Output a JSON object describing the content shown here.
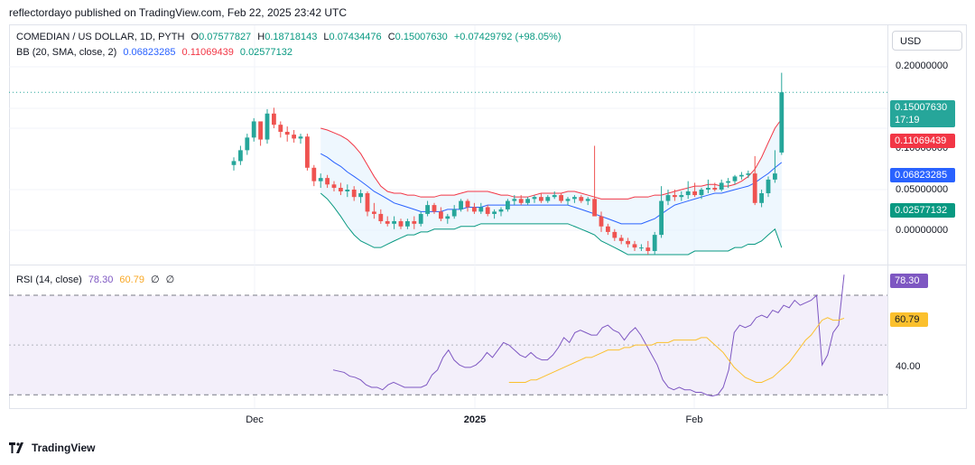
{
  "header": {
    "caption": "reflectordayo published on TradingView.com, Feb 22, 2025 23:42 UTC"
  },
  "legend": {
    "symbol": "COMEDIAN / US DOLLAR, 1D, PYTH",
    "o_label": "O",
    "o_value": "0.07577827",
    "h_label": "H",
    "h_value": "0.18718143",
    "l_label": "L",
    "l_value": "0.07434476",
    "c_label": "C",
    "c_value": "0.15007630",
    "change": "+0.07429792 (+98.05%)",
    "bb_title": "BB (20, SMA, close, 2)",
    "bb_basis": "0.06823285",
    "bb_upper": "0.11069439",
    "bb_lower": "0.02577132",
    "rsi_title": "RSI (14, close)",
    "rsi_value": "78.30",
    "rsi_ma": "60.79",
    "rsi_extra1": "∅",
    "rsi_extra2": "∅"
  },
  "currency_button": "USD",
  "price_axis": [
    "0.20000000",
    "0.10000000",
    "0.05000000",
    "0.00000000"
  ],
  "price_tags": {
    "last": "0.15007630",
    "countdown": "17:19",
    "upper": "0.11069439",
    "basis": "0.06823285",
    "lower": "0.02577132"
  },
  "rsi_axis": {
    "label": "40.00",
    "tag_value": "78.30",
    "tag_ma": "60.79"
  },
  "time_axis": [
    "Dec",
    "2025",
    "Feb"
  ],
  "footer": {
    "brand": "TradingView"
  },
  "colors": {
    "up": "#26a69a",
    "down": "#ef5350",
    "basis": "#2962ff",
    "upper": "#f23645",
    "lower": "#089981",
    "rsi": "#7e57c2",
    "rsi_ma": "#fbc02d",
    "band_fill": "#e3f2fd",
    "rsi_fill": "#f3effa"
  },
  "chart_data": [
    {
      "type": "candlestick",
      "symbol": "COMEDIAN / US DOLLAR",
      "interval": "1D",
      "price_scale": "log",
      "candles_ohlc": [
        [
          0.066,
          0.072,
          0.062,
          0.069
        ],
        [
          0.069,
          0.082,
          0.066,
          0.078
        ],
        [
          0.078,
          0.094,
          0.074,
          0.09
        ],
        [
          0.09,
          0.112,
          0.086,
          0.108
        ],
        [
          0.108,
          0.104,
          0.082,
          0.088
        ],
        [
          0.088,
          0.124,
          0.084,
          0.118
        ],
        [
          0.118,
          0.126,
          0.1,
          0.104
        ],
        [
          0.104,
          0.108,
          0.09,
          0.096
        ],
        [
          0.096,
          0.102,
          0.086,
          0.093
        ],
        [
          0.093,
          0.098,
          0.085,
          0.089
        ],
        [
          0.089,
          0.094,
          0.084,
          0.091
        ],
        [
          0.091,
          0.094,
          0.062,
          0.064
        ],
        [
          0.064,
          0.066,
          0.052,
          0.055
        ],
        [
          0.055,
          0.06,
          0.051,
          0.057
        ],
        [
          0.057,
          0.059,
          0.051,
          0.053
        ],
        [
          0.053,
          0.055,
          0.049,
          0.051
        ],
        [
          0.051,
          0.054,
          0.047,
          0.049
        ],
        [
          0.049,
          0.053,
          0.046,
          0.05
        ],
        [
          0.05,
          0.052,
          0.044,
          0.046
        ],
        [
          0.046,
          0.05,
          0.043,
          0.048
        ],
        [
          0.048,
          0.049,
          0.037,
          0.039
        ],
        [
          0.039,
          0.043,
          0.036,
          0.038
        ],
        [
          0.038,
          0.04,
          0.034,
          0.035
        ],
        [
          0.035,
          0.037,
          0.033,
          0.034
        ],
        [
          0.034,
          0.037,
          0.032,
          0.035
        ],
        [
          0.035,
          0.036,
          0.032,
          0.033
        ],
        [
          0.033,
          0.036,
          0.032,
          0.035
        ],
        [
          0.035,
          0.037,
          0.032,
          0.034
        ],
        [
          0.034,
          0.039,
          0.033,
          0.038
        ],
        [
          0.038,
          0.044,
          0.037,
          0.042
        ],
        [
          0.042,
          0.043,
          0.038,
          0.039
        ],
        [
          0.039,
          0.041,
          0.035,
          0.036
        ],
        [
          0.036,
          0.038,
          0.034,
          0.037
        ],
        [
          0.037,
          0.042,
          0.036,
          0.04
        ],
        [
          0.04,
          0.045,
          0.039,
          0.044
        ],
        [
          0.044,
          0.045,
          0.039,
          0.041
        ],
        [
          0.041,
          0.043,
          0.038,
          0.039
        ],
        [
          0.039,
          0.043,
          0.038,
          0.041
        ],
        [
          0.041,
          0.042,
          0.037,
          0.038
        ],
        [
          0.038,
          0.04,
          0.036,
          0.039
        ],
        [
          0.039,
          0.041,
          0.037,
          0.04
        ],
        [
          0.04,
          0.045,
          0.039,
          0.044
        ],
        [
          0.044,
          0.047,
          0.042,
          0.045
        ],
        [
          0.045,
          0.047,
          0.042,
          0.043
        ],
        [
          0.043,
          0.046,
          0.042,
          0.045
        ],
        [
          0.045,
          0.047,
          0.043,
          0.046
        ],
        [
          0.046,
          0.048,
          0.043,
          0.044
        ],
        [
          0.044,
          0.047,
          0.043,
          0.046
        ],
        [
          0.046,
          0.049,
          0.045,
          0.047
        ],
        [
          0.047,
          0.048,
          0.043,
          0.044
        ],
        [
          0.044,
          0.046,
          0.042,
          0.045
        ],
        [
          0.045,
          0.047,
          0.043,
          0.046
        ],
        [
          0.046,
          0.047,
          0.043,
          0.044
        ],
        [
          0.044,
          0.046,
          0.042,
          0.045
        ],
        [
          0.045,
          0.082,
          0.042,
          0.037
        ],
        [
          0.037,
          0.039,
          0.031,
          0.033
        ],
        [
          0.033,
          0.034,
          0.03,
          0.031
        ],
        [
          0.031,
          0.032,
          0.028,
          0.029
        ],
        [
          0.029,
          0.03,
          0.027,
          0.028
        ],
        [
          0.028,
          0.029,
          0.026,
          0.027
        ],
        [
          0.027,
          0.028,
          0.025,
          0.026
        ],
        [
          0.026,
          0.027,
          0.025,
          0.026
        ],
        [
          0.026,
          0.028,
          0.024,
          0.025
        ],
        [
          0.025,
          0.031,
          0.024,
          0.03
        ],
        [
          0.03,
          0.052,
          0.029,
          0.044
        ],
        [
          0.044,
          0.05,
          0.042,
          0.047
        ],
        [
          0.047,
          0.05,
          0.044,
          0.046
        ],
        [
          0.046,
          0.049,
          0.044,
          0.047
        ],
        [
          0.047,
          0.055,
          0.045,
          0.049
        ],
        [
          0.049,
          0.054,
          0.046,
          0.047
        ],
        [
          0.047,
          0.051,
          0.045,
          0.05
        ],
        [
          0.05,
          0.056,
          0.048,
          0.051
        ],
        [
          0.051,
          0.054,
          0.049,
          0.05
        ],
        [
          0.05,
          0.056,
          0.049,
          0.054
        ],
        [
          0.054,
          0.057,
          0.051,
          0.055
        ],
        [
          0.055,
          0.059,
          0.053,
          0.058
        ],
        [
          0.058,
          0.061,
          0.056,
          0.059
        ],
        [
          0.059,
          0.062,
          0.057,
          0.06
        ],
        [
          0.06,
          0.073,
          0.042,
          0.043
        ],
        [
          0.043,
          0.05,
          0.041,
          0.048
        ],
        [
          0.048,
          0.058,
          0.046,
          0.056
        ],
        [
          0.056,
          0.078,
          0.054,
          0.06
        ],
        [
          0.076,
          0.187,
          0.074,
          0.15
        ]
      ],
      "first_candle_day": "2024-11-25",
      "bollinger_upper": [
        0.1,
        0.098,
        0.095,
        0.092,
        0.088,
        0.082,
        0.075,
        0.066,
        0.058,
        0.052,
        0.049,
        0.048,
        0.048,
        0.047,
        0.047,
        0.046,
        0.046,
        0.046,
        0.047,
        0.047,
        0.047,
        0.048,
        0.049,
        0.049,
        0.049,
        0.049,
        0.048,
        0.047,
        0.047,
        0.046,
        0.046,
        0.046,
        0.047,
        0.048,
        0.048,
        0.048,
        0.048,
        0.049,
        0.049,
        0.048,
        0.047,
        0.046,
        0.045,
        0.045,
        0.045,
        0.045,
        0.045,
        0.046,
        0.046,
        0.046,
        0.047,
        0.047,
        0.048,
        0.049,
        0.05,
        0.051,
        0.052,
        0.052,
        0.053,
        0.053,
        0.052,
        0.052,
        0.053,
        0.055,
        0.058,
        0.063,
        0.072,
        0.085,
        0.1,
        0.111
      ],
      "bollinger_basis": [
        0.075,
        0.072,
        0.068,
        0.065,
        0.061,
        0.058,
        0.055,
        0.052,
        0.049,
        0.047,
        0.045,
        0.043,
        0.042,
        0.041,
        0.04,
        0.039,
        0.039,
        0.039,
        0.039,
        0.04,
        0.04,
        0.04,
        0.041,
        0.041,
        0.041,
        0.042,
        0.042,
        0.042,
        0.042,
        0.042,
        0.042,
        0.042,
        0.042,
        0.042,
        0.042,
        0.042,
        0.042,
        0.042,
        0.041,
        0.04,
        0.039,
        0.038,
        0.037,
        0.036,
        0.035,
        0.034,
        0.034,
        0.034,
        0.034,
        0.035,
        0.036,
        0.038,
        0.04,
        0.042,
        0.043,
        0.044,
        0.045,
        0.046,
        0.047,
        0.048,
        0.048,
        0.049,
        0.05,
        0.051,
        0.052,
        0.054,
        0.057,
        0.06,
        0.064,
        0.068
      ],
      "bollinger_lower": [
        0.048,
        0.045,
        0.041,
        0.037,
        0.033,
        0.03,
        0.028,
        0.027,
        0.026,
        0.026,
        0.027,
        0.028,
        0.029,
        0.03,
        0.03,
        0.031,
        0.031,
        0.032,
        0.032,
        0.032,
        0.032,
        0.033,
        0.033,
        0.033,
        0.034,
        0.034,
        0.034,
        0.034,
        0.034,
        0.034,
        0.034,
        0.034,
        0.034,
        0.034,
        0.034,
        0.034,
        0.034,
        0.034,
        0.033,
        0.032,
        0.031,
        0.03,
        0.028,
        0.027,
        0.026,
        0.025,
        0.024,
        0.024,
        0.024,
        0.024,
        0.024,
        0.024,
        0.024,
        0.024,
        0.024,
        0.024,
        0.025,
        0.025,
        0.025,
        0.025,
        0.025,
        0.025,
        0.026,
        0.026,
        0.027,
        0.027,
        0.028,
        0.03,
        0.032,
        0.026
      ],
      "bollinger_first_candle_index": 13
    },
    {
      "type": "line",
      "name": "RSI (14, close)",
      "ylim": [
        25,
        82
      ],
      "levels": [
        70,
        50,
        30
      ],
      "rsi": [
        40,
        39.5,
        39,
        37.5,
        37,
        36,
        34,
        33,
        33,
        32,
        34,
        35,
        34,
        33,
        33,
        33,
        33,
        34,
        38,
        40,
        45,
        48,
        44,
        42,
        41,
        41,
        42,
        44,
        47,
        45,
        48,
        51,
        50,
        48,
        46,
        45,
        47,
        45,
        44,
        44,
        46,
        49,
        53,
        51,
        55,
        56,
        55,
        54,
        54,
        57,
        58,
        56,
        55,
        52,
        55,
        57,
        54,
        50,
        46,
        42,
        36,
        33,
        32,
        33,
        32,
        32,
        31,
        31,
        30,
        29.5,
        30,
        33,
        40,
        55,
        58,
        57,
        58,
        61,
        62,
        61,
        64,
        63,
        66,
        65,
        68,
        66,
        67,
        68,
        70,
        42,
        46,
        55,
        58,
        78.3
      ],
      "rsi_ma": [
        35,
        35,
        35,
        35,
        36,
        36,
        37,
        38,
        39,
        40,
        41,
        42,
        43,
        44,
        45,
        45,
        46,
        47,
        48,
        48,
        48,
        49,
        49,
        50,
        50,
        50,
        50,
        51,
        51,
        51,
        52,
        52,
        52,
        52,
        52,
        53,
        53,
        51,
        49,
        47,
        44,
        41,
        39,
        37,
        36,
        35,
        35,
        36,
        37,
        39,
        41,
        43,
        46,
        49,
        52,
        54,
        57,
        60,
        61,
        60,
        60,
        60.79
      ],
      "rsi_ma_first_index": 32
    }
  ]
}
